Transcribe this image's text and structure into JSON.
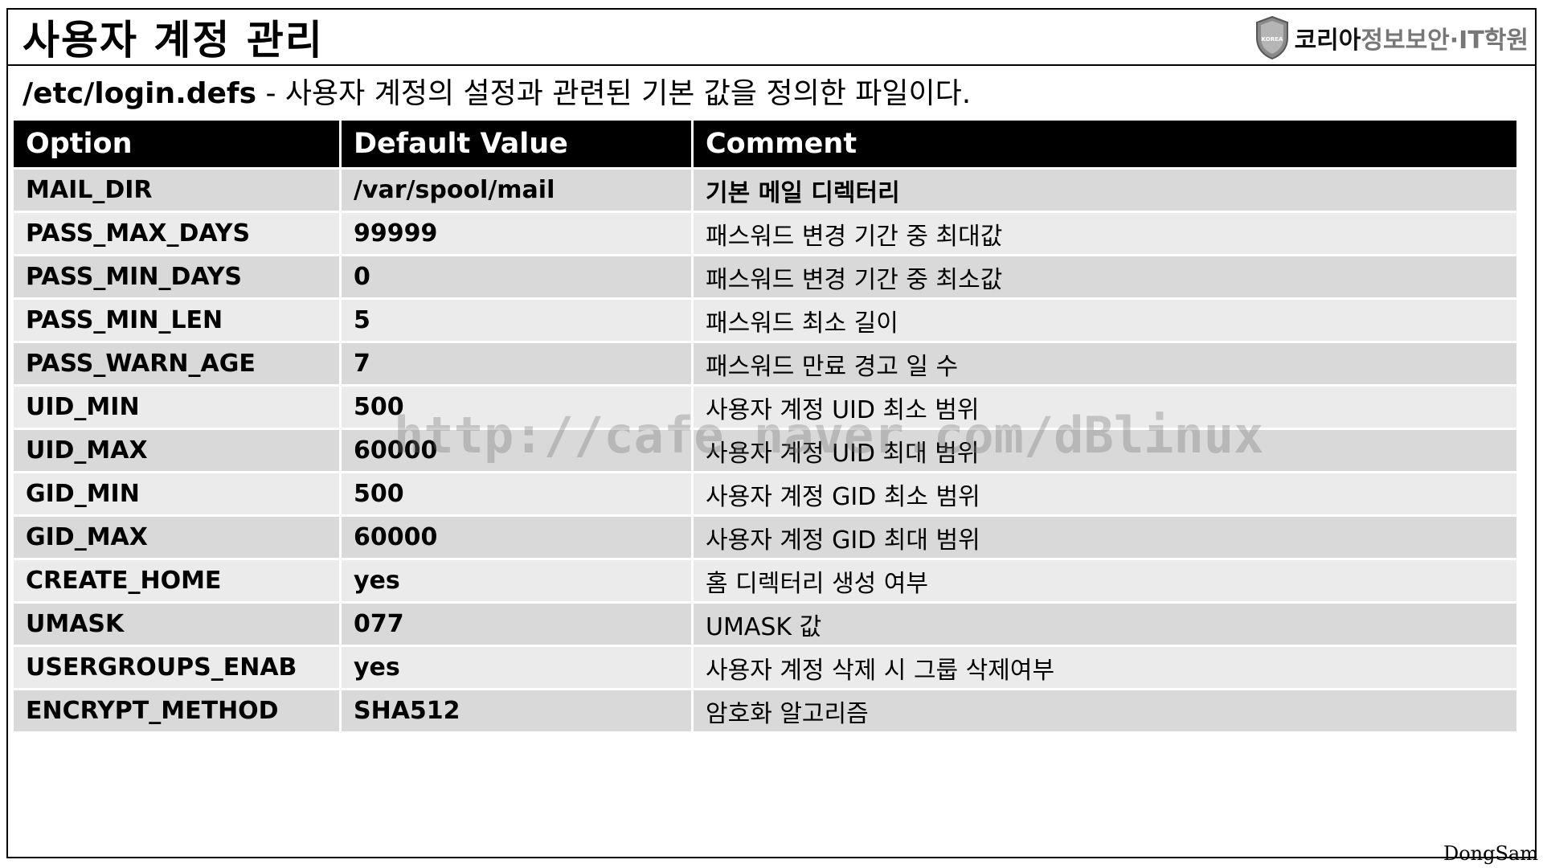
{
  "header": {
    "title": "사용자 계정 관리",
    "logo_main": "코리아",
    "logo_sub": "정보보안·IT학원",
    "logo_badge": "KOREA"
  },
  "subtitle": {
    "path": "/etc/login.defs",
    "description": " - 사용자 계정의 설정과 관련된 기본 값을 정의한 파일이다."
  },
  "table": {
    "columns": [
      "Option",
      "Default Value",
      "Comment"
    ],
    "rows": [
      {
        "option": "MAIL_DIR",
        "value": "/var/spool/mail",
        "comment": "기본 메일 디렉터리"
      },
      {
        "option": "PASS_MAX_DAYS",
        "value": "99999",
        "comment": "패스워드 변경 기간 중 최대값"
      },
      {
        "option": "PASS_MIN_DAYS",
        "value": "0",
        "comment": "패스워드 변경 기간 중 최소값"
      },
      {
        "option": "PASS_MIN_LEN",
        "value": "5",
        "comment": "패스워드 최소 길이"
      },
      {
        "option": "PASS_WARN_AGE",
        "value": "7",
        "comment": "패스워드 만료 경고 일 수"
      },
      {
        "option": "UID_MIN",
        "value": "500",
        "comment": "사용자 계정 UID 최소 범위"
      },
      {
        "option": "UID_MAX",
        "value": "60000",
        "comment": "사용자 계정 UID 최대 범위"
      },
      {
        "option": "GID_MIN",
        "value": "500",
        "comment": "사용자 계정 GID 최소 범위"
      },
      {
        "option": "GID_MAX",
        "value": "60000",
        "comment": "사용자 계정 GID 최대 범위"
      },
      {
        "option": "CREATE_HOME",
        "value": "yes",
        "comment": "홈 디렉터리 생성 여부"
      },
      {
        "option": "UMASK",
        "value": "077",
        "comment": "UMASK 값"
      },
      {
        "option": "USERGROUPS_ENAB",
        "value": "yes",
        "comment": "사용자 계정 삭제 시 그룹 삭제여부"
      },
      {
        "option": "ENCRYPT_METHOD",
        "value": "SHA512",
        "comment": "암호화 알고리즘"
      }
    ]
  },
  "watermark": "http://cafe.naver.com/dBlinux",
  "author": "DongSam",
  "colors": {
    "header_bg": "#000000",
    "row_dark": "#d9d9d9",
    "row_light": "#ebebeb",
    "logo_sub": "#777777"
  }
}
